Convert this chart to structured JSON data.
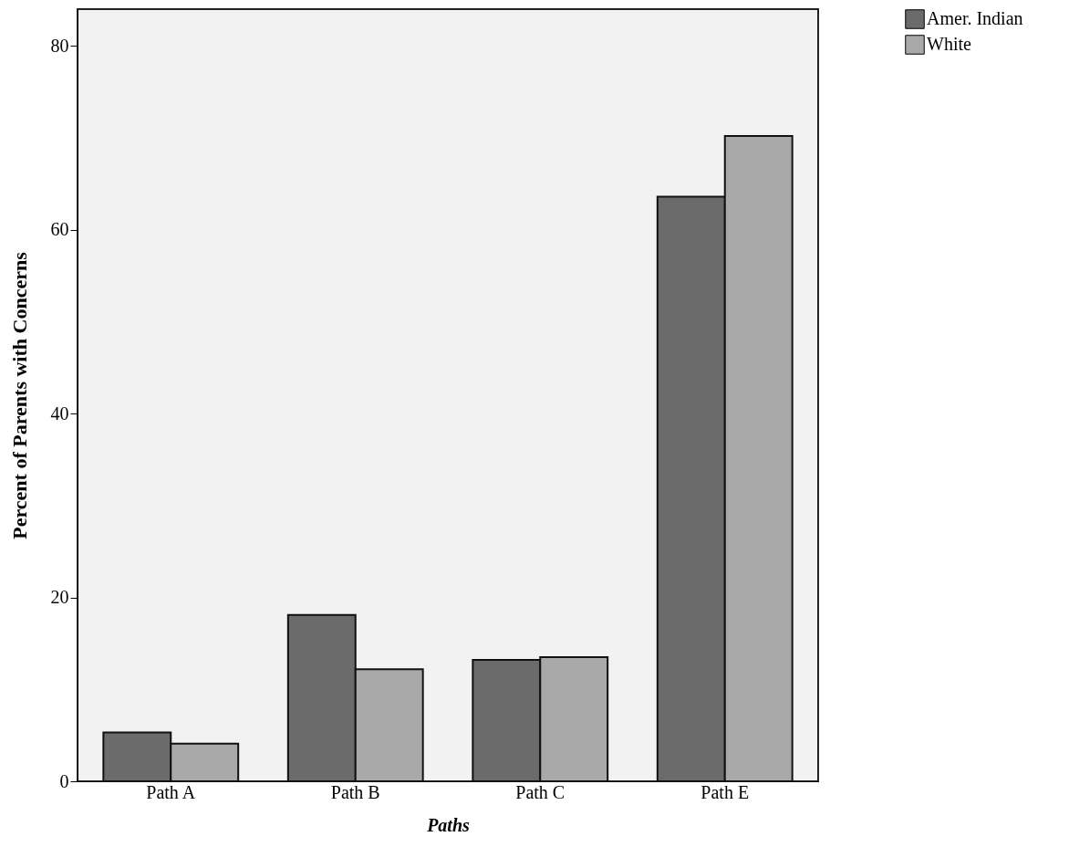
{
  "chart_data": {
    "type": "bar",
    "xlabel": "Paths",
    "ylabel": "Percent of Parents with Concerns",
    "categories": [
      "Path A",
      "Path B",
      "Path C",
      "Path E"
    ],
    "series": [
      {
        "name": "Amer. Indian",
        "color": "#6b6b6b",
        "values": [
          5.3,
          18.1,
          13.2,
          63.6
        ]
      },
      {
        "name": "White",
        "color": "#a9a9a9",
        "values": [
          4.1,
          12.2,
          13.5,
          70.2
        ]
      }
    ],
    "ylim": [
      0,
      84
    ],
    "yticks": [
      0,
      20,
      40,
      60,
      80
    ],
    "grid": false,
    "legend": "top right"
  }
}
